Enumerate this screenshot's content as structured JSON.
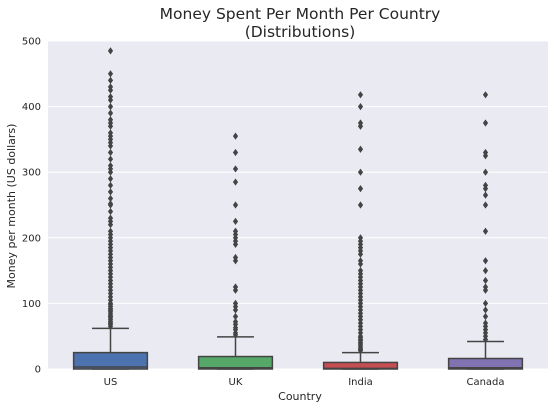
{
  "chart_data": {
    "type": "box",
    "title": "Money Spent Per Month Per Country",
    "subtitle": "(Distributions)",
    "xlabel": "Country",
    "ylabel": "Money per month (US dollars)",
    "ylim": [
      0,
      500
    ],
    "yticks": [
      0,
      100,
      200,
      300,
      400,
      500
    ],
    "grid": true,
    "categories": [
      "US",
      "UK",
      "India",
      "Canada"
    ],
    "colors": [
      "#4c72b0",
      "#55a868",
      "#c44e52",
      "#8172b2"
    ],
    "series": [
      {
        "category": "US",
        "q1": 0,
        "median": 3,
        "q3": 25,
        "whisker_low": 0,
        "whisker_high": 62,
        "outliers": [
          65,
          68,
          70,
          72,
          75,
          78,
          80,
          82,
          85,
          88,
          90,
          92,
          95,
          98,
          100,
          105,
          110,
          115,
          120,
          125,
          130,
          135,
          140,
          145,
          150,
          155,
          160,
          165,
          170,
          175,
          180,
          185,
          190,
          195,
          200,
          205,
          210,
          220,
          225,
          230,
          240,
          250,
          252,
          260,
          270,
          280,
          290,
          300,
          305,
          310,
          320,
          330,
          340,
          345,
          350,
          355,
          360,
          370,
          375,
          380,
          390,
          400,
          410,
          415,
          425,
          430,
          440,
          450,
          485
        ]
      },
      {
        "category": "UK",
        "q1": 0,
        "median": 2,
        "q3": 19,
        "whisker_low": 0,
        "whisker_high": 49,
        "outliers": [
          52,
          55,
          60,
          63,
          68,
          72,
          80,
          90,
          95,
          100,
          120,
          125,
          165,
          170,
          190,
          195,
          200,
          205,
          210,
          225,
          250,
          285,
          305,
          330,
          355
        ]
      },
      {
        "category": "India",
        "q1": 0,
        "median": 1,
        "q3": 10,
        "whisker_low": 0,
        "whisker_high": 25,
        "outliers": [
          28,
          30,
          32,
          35,
          38,
          40,
          43,
          45,
          48,
          50,
          55,
          60,
          65,
          70,
          75,
          80,
          85,
          90,
          95,
          100,
          105,
          110,
          115,
          120,
          125,
          130,
          135,
          140,
          145,
          150,
          160,
          165,
          175,
          180,
          185,
          190,
          195,
          200,
          250,
          275,
          300,
          335,
          370,
          375,
          400,
          418
        ]
      },
      {
        "category": "Canada",
        "q1": 0,
        "median": 2,
        "q3": 16,
        "whisker_low": 0,
        "whisker_high": 42,
        "outliers": [
          45,
          50,
          55,
          60,
          65,
          70,
          80,
          90,
          100,
          120,
          125,
          135,
          150,
          165,
          210,
          250,
          265,
          275,
          280,
          300,
          325,
          330,
          375,
          418
        ]
      }
    ]
  }
}
